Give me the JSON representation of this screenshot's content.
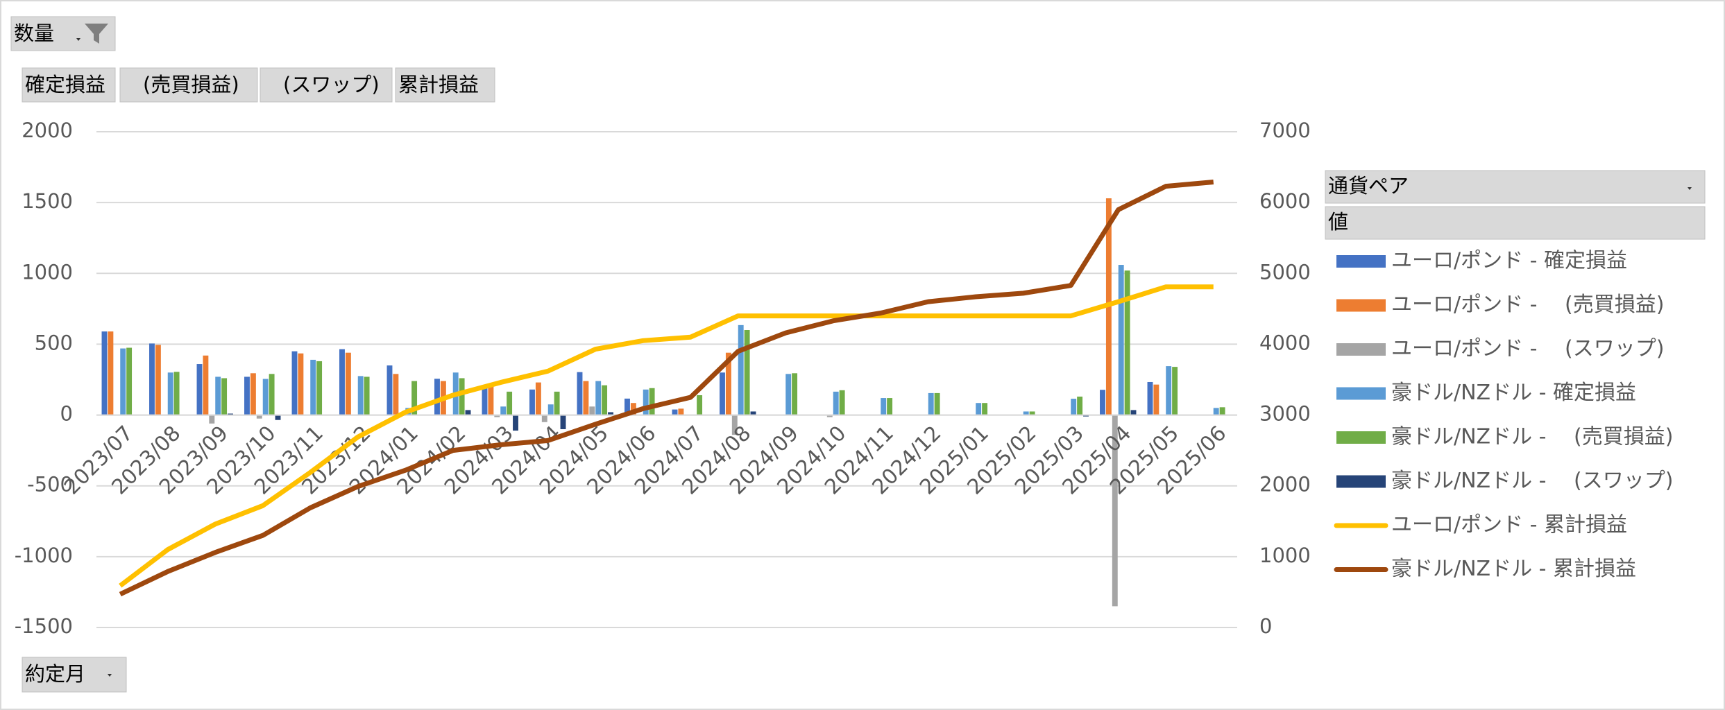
{
  "chart_data": {
    "type": "combo",
    "filter_button": "数量",
    "field_buttons": [
      "確定損益",
      "　(売買損益)",
      "　(スワップ)",
      "累計損益"
    ],
    "legend_title": "通貨ペア",
    "legend_subtitle": "値",
    "axis_button": "約定月",
    "categories": [
      "2023/07",
      "2023/08",
      "2023/09",
      "2023/10",
      "2023/11",
      "2023/12",
      "2024/01",
      "2024/02",
      "2024/03",
      "2024/04",
      "2024/05",
      "2024/06",
      "2024/07",
      "2024/08",
      "2024/09",
      "2024/10",
      "2024/11",
      "2024/12",
      "2025/01",
      "2025/02",
      "2025/03",
      "2025/04",
      "2025/05",
      "2025/06"
    ],
    "ylim": [
      -1500,
      2000
    ],
    "yticks": [
      -1500,
      -1000,
      -500,
      0,
      500,
      1000,
      1500,
      2000
    ],
    "y2lim": [
      0,
      7000
    ],
    "y2ticks": [
      0,
      1000,
      2000,
      3000,
      4000,
      5000,
      6000,
      7000
    ],
    "grid": true,
    "series": [
      {
        "name": "ユーロ/ポンド - 確定損益",
        "type": "bar",
        "color": "#4472c4",
        "values": [
          590,
          505,
          360,
          270,
          450,
          465,
          350,
          256,
          200,
          180,
          303,
          116,
          39,
          300,
          0,
          0,
          0,
          0,
          0,
          0,
          0,
          178,
          233,
          0
        ]
      },
      {
        "name": "ユーロ/ポンド - 　(売買損益)",
        "type": "bar",
        "color": "#ed7d31",
        "values": [
          590,
          495,
          420,
          295,
          435,
          440,
          290,
          240,
          200,
          230,
          240,
          85,
          45,
          440,
          0,
          0,
          0,
          0,
          0,
          0,
          0,
          1530,
          215,
          0
        ]
      },
      {
        "name": "ユーロ/ポンド - 　(スワップ)",
        "type": "bar",
        "color": "#a5a5a5",
        "values": [
          0,
          0,
          -60,
          -25,
          0,
          0,
          0,
          0,
          -15,
          -50,
          60,
          0,
          0,
          -140,
          0,
          -15,
          0,
          0,
          0,
          0,
          0,
          -1350,
          0,
          0
        ]
      },
      {
        "name": "豪ドル/NZドル - 確定損益",
        "type": "bar",
        "color": "#5b9bd5",
        "values": [
          470,
          300,
          270,
          255,
          390,
          275,
          50,
          300,
          60,
          75,
          240,
          180,
          0,
          635,
          290,
          165,
          120,
          155,
          85,
          25,
          115,
          1060,
          345,
          50
        ]
      },
      {
        "name": "豪ドル/NZドル - 　(売買損益)",
        "type": "bar",
        "color": "#70ad47",
        "values": [
          475,
          305,
          260,
          290,
          380,
          270,
          240,
          260,
          165,
          165,
          210,
          190,
          140,
          600,
          295,
          175,
          120,
          155,
          85,
          25,
          130,
          1020,
          340,
          55
        ]
      },
      {
        "name": "豪ドル/NZドル - 　(スワップ)",
        "type": "bar",
        "color": "#264478",
        "values": [
          0,
          0,
          10,
          -35,
          0,
          0,
          0,
          35,
          -110,
          -100,
          20,
          0,
          0,
          25,
          0,
          0,
          0,
          0,
          0,
          0,
          -10,
          35,
          0,
          0
        ]
      },
      {
        "name": "ユーロ/ポンド - 累計損益",
        "type": "line",
        "axis": "y2",
        "color": "#ffc000",
        "values": [
          590,
          1100,
          1460,
          1720,
          2190,
          2690,
          3040,
          3280,
          3460,
          3620,
          3930,
          4050,
          4100,
          4400,
          4400,
          4400,
          4400,
          4400,
          4400,
          4400,
          4400,
          4600,
          4810,
          4810
        ]
      },
      {
        "name": "豪ドル/NZドル - 累計損益",
        "type": "line",
        "axis": "y2",
        "color": "#9e480e",
        "values": [
          470,
          790,
          1060,
          1300,
          1690,
          1990,
          2220,
          2500,
          2580,
          2640,
          2870,
          3090,
          3250,
          3900,
          4160,
          4330,
          4440,
          4600,
          4670,
          4720,
          4830,
          5900,
          6230,
          6290
        ]
      }
    ]
  }
}
